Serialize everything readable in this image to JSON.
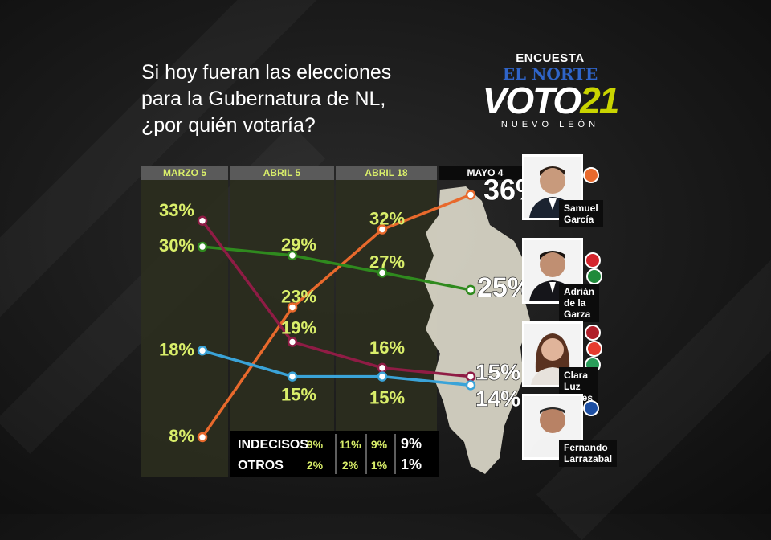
{
  "question": {
    "line1": "Si hoy fueran las elecciones",
    "line2": "para la Gubernatura de NL,",
    "line3": "¿por quién votaría?"
  },
  "logo": {
    "encuesta": "ENCUESTA",
    "paper": "EL NORTE",
    "brand_main": "VOTO",
    "brand_num": "21",
    "region": "NUEVO LEÓN"
  },
  "colors": {
    "background": "#1a1a1a",
    "panel": "#2b2e1e",
    "header_bar": "#5a5a5a",
    "label_green": "#d9ee6a",
    "map": "#d6d3c4",
    "samuel": "#e8692c",
    "adrian": "#2f8a1e",
    "clara": "#8f1c45",
    "fernando": "#3aa3d8"
  },
  "chart_data": {
    "type": "line",
    "title": "Si hoy fueran las elecciones para la Gubernatura de NL, ¿por quién votaría?",
    "categories": [
      "MARZO 5",
      "ABRIL 5",
      "ABRIL 18",
      "MAYO 4"
    ],
    "series": [
      {
        "name": "Samuel García",
        "values": [
          8,
          23,
          32,
          36
        ],
        "labels": [
          "8%",
          "23%",
          "32%",
          "36%"
        ],
        "color": "#e8692c"
      },
      {
        "name": "Adrián de la Garza",
        "values": [
          30,
          29,
          27,
          25
        ],
        "labels": [
          "30%",
          "29%",
          "27%",
          "25%"
        ],
        "color": "#2f8a1e"
      },
      {
        "name": "Clara Luz Flores",
        "values": [
          33,
          19,
          16,
          15
        ],
        "labels": [
          "33%",
          "19%",
          "16%",
          "15%"
        ],
        "color": "#8f1c45"
      },
      {
        "name": "Fernando Larrazabal",
        "values": [
          18,
          15,
          15,
          14
        ],
        "labels": [
          "18%",
          "15%",
          "15%",
          "14%"
        ],
        "color": "#3aa3d8"
      }
    ],
    "table": [
      {
        "label": "INDECISOS",
        "values": [
          "9%",
          "11%",
          "9%",
          "9%"
        ]
      },
      {
        "label": "OTROS",
        "values": [
          "2%",
          "2%",
          "1%",
          "1%"
        ]
      }
    ],
    "grid": false,
    "legend": "right"
  },
  "candidates": [
    {
      "line1": "Samuel",
      "line2": "García",
      "badge_colors": [
        "#e8692c",
        "#ffffff"
      ]
    },
    {
      "line1": "Adrián",
      "line2": "de la Garza",
      "badge_colors": [
        "#d4242c",
        "#1f8a3a"
      ]
    },
    {
      "line1": "Clara Luz",
      "line2": "Flores",
      "badge_colors": [
        "#b01f2a",
        "#2a9d5a"
      ]
    },
    {
      "line1": "Fernando",
      "line2": "Larrazabal",
      "badge_colors": [
        "#1d4fa3",
        "#ffffff"
      ]
    }
  ]
}
